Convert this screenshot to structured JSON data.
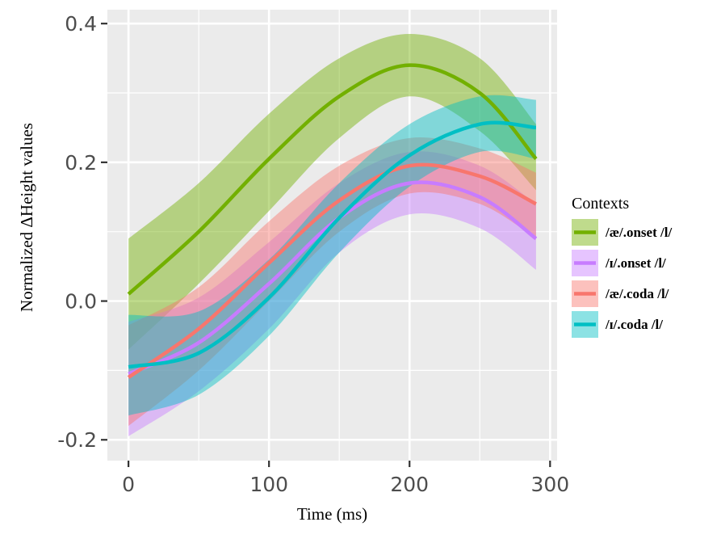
{
  "chart_data": {
    "type": "line",
    "title": "",
    "xlabel": "Time (ms)",
    "ylabel": "Normalized ΔHeight values",
    "xlim": [
      -15,
      305
    ],
    "ylim": [
      -0.23,
      0.42
    ],
    "x_ticks": [
      0,
      100,
      200,
      300
    ],
    "y_ticks": [
      -0.2,
      0.0,
      0.2,
      0.4
    ],
    "x_tick_labels": [
      "0",
      "100",
      "200",
      "300"
    ],
    "y_tick_labels": [
      "-0.2",
      "0.0",
      "0.2",
      "0.4"
    ],
    "grid": true,
    "background": "#ebebeb",
    "legend_title": "Contexts",
    "legend_position": "right",
    "band": "confidence ribbon",
    "series": [
      {
        "name": "/æ/.onset /l/",
        "color": "#72b000",
        "x": [
          0,
          50,
          100,
          150,
          200,
          250,
          290
        ],
        "y": [
          0.01,
          0.1,
          0.205,
          0.295,
          0.34,
          0.3,
          0.205
        ],
        "lower": [
          -0.07,
          0.025,
          0.13,
          0.235,
          0.295,
          0.245,
          0.16
        ],
        "upper": [
          0.09,
          0.17,
          0.27,
          0.35,
          0.385,
          0.35,
          0.255
        ]
      },
      {
        "name": "/ɪ/.onset /l/",
        "color": "#c77cff",
        "x": [
          0,
          50,
          100,
          150,
          200,
          250,
          290
        ],
        "y": [
          -0.105,
          -0.06,
          0.025,
          0.12,
          0.17,
          0.15,
          0.09
        ],
        "lower": [
          -0.195,
          -0.13,
          -0.04,
          0.07,
          0.125,
          0.105,
          0.045
        ],
        "upper": [
          -0.03,
          0.005,
          0.085,
          0.17,
          0.215,
          0.195,
          0.14
        ]
      },
      {
        "name": "/æ/.coda /l/",
        "color": "#f8766d",
        "x": [
          0,
          50,
          100,
          150,
          200,
          250,
          290
        ],
        "y": [
          -0.11,
          -0.04,
          0.055,
          0.145,
          0.195,
          0.18,
          0.14
        ],
        "lower": [
          -0.18,
          -0.1,
          0.0,
          0.1,
          0.155,
          0.14,
          0.09
        ],
        "upper": [
          -0.035,
          0.02,
          0.115,
          0.195,
          0.235,
          0.22,
          0.185
        ]
      },
      {
        "name": "/ɪ/.coda /l/",
        "color": "#00bfc4",
        "x": [
          0,
          50,
          100,
          150,
          200,
          250,
          290
        ],
        "y": [
          -0.095,
          -0.075,
          0.005,
          0.12,
          0.21,
          0.255,
          0.25
        ],
        "lower": [
          -0.165,
          -0.135,
          -0.05,
          0.07,
          0.165,
          0.215,
          0.205
        ],
        "upper": [
          -0.02,
          -0.015,
          0.06,
          0.17,
          0.255,
          0.295,
          0.29
        ]
      }
    ]
  }
}
